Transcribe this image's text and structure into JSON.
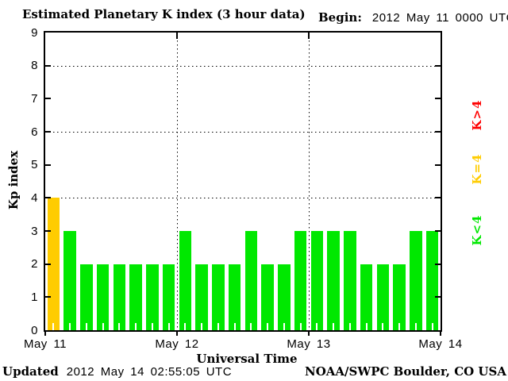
{
  "title": "Estimated Planetary K index (3 hour data)",
  "header": {
    "begin_label": "Begin:",
    "begin_value": "2012 May 11 0000 UTC"
  },
  "footer": {
    "updated_label": "Updated",
    "updated_value": "2012 May 14 02:55:05 UTC",
    "credit": "NOAA/SWPC Boulder, CO USA"
  },
  "colors": {
    "green": "#00e800",
    "yellow": "#ffcc00",
    "red": "#ff0000",
    "axis": "#000000",
    "background": "#ffffff"
  },
  "legend": [
    {
      "label": "K>4",
      "color_key": "red"
    },
    {
      "label": "K=4",
      "color_key": "yellow"
    },
    {
      "label": "K<4",
      "color_key": "green"
    }
  ],
  "chart_data": {
    "type": "bar",
    "title": "Estimated Planetary K index (3 hour data)",
    "xlabel": "Universal Time",
    "ylabel": "Kp index",
    "ylim": [
      0,
      9
    ],
    "y_ticks": [
      0,
      1,
      2,
      3,
      4,
      5,
      6,
      7,
      8,
      9
    ],
    "dotted_hlines_at": [
      4,
      6,
      8
    ],
    "dotted_vlines_at_bar": [
      8,
      16
    ],
    "begin": "2012 May 11 0000 UTC",
    "interval_hours": 3,
    "bars_per_day": 8,
    "x_day_labels": [
      "May 11",
      "May 12",
      "May 13",
      "May 14"
    ],
    "values": [
      4,
      3,
      2,
      2,
      2,
      2,
      2,
      2,
      3,
      2,
      2,
      2,
      3,
      2,
      2,
      3,
      3,
      3,
      3,
      2,
      2,
      2,
      3,
      3
    ],
    "color_rule": {
      "kp_lt_4": "green",
      "kp_eq_4": "yellow",
      "kp_gt_4": "red"
    },
    "legend_position": "right"
  }
}
